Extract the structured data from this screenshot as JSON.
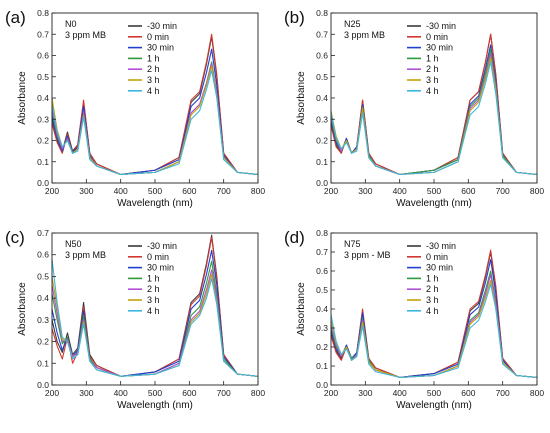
{
  "legend": {
    "entries": [
      "-30 min",
      "0 min",
      "30 min",
      "1 h",
      "2 h",
      "3 h",
      "4 h"
    ],
    "colors": [
      "#3a3a3a",
      "#d2372e",
      "#1f3fd1",
      "#2e9a3e",
      "#b24fd4",
      "#c6a10a",
      "#3bb8e0"
    ]
  },
  "chart_data": [
    {
      "type": "line",
      "panel_label": "(a)",
      "annotation": [
        "N0",
        "3 ppm MB"
      ],
      "xlabel": "Wavelength (nm)",
      "ylabel": "Absorbance",
      "xlim": [
        200,
        800
      ],
      "ylim": [
        0.0,
        0.8
      ],
      "xticks": [
        200,
        300,
        400,
        500,
        600,
        700,
        800
      ],
      "yticks": [
        0.0,
        0.1,
        0.2,
        0.3,
        0.4,
        0.5,
        0.6,
        0.7,
        0.8
      ],
      "x": [
        200,
        215,
        230,
        245,
        260,
        275,
        292,
        310,
        330,
        400,
        500,
        570,
        605,
        630,
        650,
        665,
        680,
        700,
        740,
        800
      ],
      "series": [
        {
          "name": "-30 min",
          "values": [
            0.3,
            0.2,
            0.15,
            0.24,
            0.15,
            0.18,
            0.38,
            0.14,
            0.09,
            0.04,
            0.06,
            0.12,
            0.38,
            0.42,
            0.56,
            0.69,
            0.5,
            0.14,
            0.05,
            0.04
          ]
        },
        {
          "name": "0 min",
          "values": [
            0.28,
            0.19,
            0.14,
            0.23,
            0.14,
            0.18,
            0.39,
            0.14,
            0.09,
            0.04,
            0.06,
            0.12,
            0.39,
            0.43,
            0.57,
            0.7,
            0.51,
            0.14,
            0.05,
            0.04
          ]
        },
        {
          "name": "30 min",
          "values": [
            0.31,
            0.21,
            0.15,
            0.22,
            0.14,
            0.17,
            0.36,
            0.13,
            0.08,
            0.04,
            0.06,
            0.11,
            0.36,
            0.4,
            0.52,
            0.63,
            0.46,
            0.13,
            0.05,
            0.04
          ]
        },
        {
          "name": "1 h",
          "values": [
            0.33,
            0.22,
            0.16,
            0.21,
            0.14,
            0.16,
            0.33,
            0.12,
            0.08,
            0.04,
            0.05,
            0.1,
            0.33,
            0.37,
            0.47,
            0.57,
            0.42,
            0.12,
            0.05,
            0.04
          ]
        },
        {
          "name": "2 h",
          "values": [
            0.35,
            0.23,
            0.16,
            0.21,
            0.14,
            0.16,
            0.33,
            0.12,
            0.08,
            0.04,
            0.05,
            0.1,
            0.33,
            0.37,
            0.47,
            0.56,
            0.42,
            0.12,
            0.05,
            0.04
          ]
        },
        {
          "name": "3 h",
          "values": [
            0.4,
            0.25,
            0.17,
            0.2,
            0.14,
            0.16,
            0.32,
            0.12,
            0.08,
            0.04,
            0.05,
            0.1,
            0.32,
            0.36,
            0.46,
            0.55,
            0.41,
            0.12,
            0.05,
            0.04
          ]
        },
        {
          "name": "4 h",
          "values": [
            0.37,
            0.24,
            0.17,
            0.2,
            0.14,
            0.15,
            0.31,
            0.11,
            0.08,
            0.04,
            0.05,
            0.09,
            0.3,
            0.34,
            0.44,
            0.53,
            0.4,
            0.11,
            0.05,
            0.04
          ]
        }
      ]
    },
    {
      "type": "line",
      "panel_label": "(b)",
      "annotation": [
        "N25",
        "3 ppm MB"
      ],
      "xlabel": "Wavelength (nm)",
      "ylabel": "Absorbance",
      "xlim": [
        200,
        800
      ],
      "ylim": [
        0.0,
        0.8
      ],
      "xticks": [
        200,
        300,
        400,
        500,
        600,
        700,
        800
      ],
      "yticks": [
        0.0,
        0.1,
        0.2,
        0.3,
        0.4,
        0.5,
        0.6,
        0.7,
        0.8
      ],
      "x": [
        200,
        215,
        230,
        245,
        260,
        275,
        292,
        310,
        330,
        400,
        500,
        570,
        605,
        630,
        650,
        665,
        680,
        700,
        740,
        800
      ],
      "series": [
        {
          "name": "-30 min",
          "values": [
            0.28,
            0.18,
            0.14,
            0.21,
            0.14,
            0.17,
            0.39,
            0.14,
            0.09,
            0.04,
            0.06,
            0.12,
            0.39,
            0.43,
            0.57,
            0.7,
            0.51,
            0.14,
            0.05,
            0.04
          ]
        },
        {
          "name": "0 min",
          "values": [
            0.27,
            0.17,
            0.14,
            0.21,
            0.14,
            0.17,
            0.39,
            0.14,
            0.09,
            0.04,
            0.06,
            0.12,
            0.39,
            0.43,
            0.57,
            0.7,
            0.51,
            0.14,
            0.05,
            0.04
          ]
        },
        {
          "name": "30 min",
          "values": [
            0.3,
            0.19,
            0.15,
            0.21,
            0.14,
            0.17,
            0.37,
            0.13,
            0.08,
            0.04,
            0.06,
            0.11,
            0.37,
            0.41,
            0.54,
            0.65,
            0.48,
            0.13,
            0.05,
            0.04
          ]
        },
        {
          "name": "1 h",
          "values": [
            0.31,
            0.2,
            0.15,
            0.2,
            0.14,
            0.16,
            0.36,
            0.13,
            0.08,
            0.04,
            0.06,
            0.11,
            0.36,
            0.4,
            0.52,
            0.63,
            0.46,
            0.13,
            0.05,
            0.04
          ]
        },
        {
          "name": "2 h",
          "values": [
            0.32,
            0.21,
            0.15,
            0.2,
            0.14,
            0.16,
            0.35,
            0.12,
            0.08,
            0.04,
            0.05,
            0.1,
            0.35,
            0.39,
            0.5,
            0.61,
            0.45,
            0.12,
            0.05,
            0.04
          ]
        },
        {
          "name": "3 h",
          "values": [
            0.34,
            0.22,
            0.16,
            0.2,
            0.14,
            0.16,
            0.35,
            0.12,
            0.08,
            0.04,
            0.05,
            0.1,
            0.34,
            0.38,
            0.49,
            0.59,
            0.44,
            0.12,
            0.05,
            0.04
          ]
        },
        {
          "name": "4 h",
          "values": [
            0.33,
            0.21,
            0.16,
            0.19,
            0.14,
            0.15,
            0.33,
            0.12,
            0.08,
            0.04,
            0.05,
            0.1,
            0.32,
            0.36,
            0.47,
            0.57,
            0.42,
            0.12,
            0.05,
            0.04
          ]
        }
      ]
    },
    {
      "type": "line",
      "panel_label": "(c)",
      "annotation": [
        "N50",
        "3 ppm MB"
      ],
      "xlabel": "Wavelength (nm)",
      "ylabel": "Absorbance",
      "xlim": [
        200,
        800
      ],
      "ylim": [
        0.0,
        0.7
      ],
      "xticks": [
        200,
        300,
        400,
        500,
        600,
        700,
        800
      ],
      "yticks": [
        0.0,
        0.1,
        0.2,
        0.3,
        0.4,
        0.5,
        0.6,
        0.7
      ],
      "x": [
        200,
        215,
        230,
        245,
        260,
        275,
        292,
        310,
        330,
        400,
        500,
        570,
        605,
        630,
        650,
        665,
        680,
        700,
        740,
        800
      ],
      "series": [
        {
          "name": "-30 min",
          "values": [
            0.3,
            0.2,
            0.15,
            0.24,
            0.14,
            0.17,
            0.38,
            0.14,
            0.09,
            0.04,
            0.06,
            0.12,
            0.38,
            0.42,
            0.56,
            0.69,
            0.5,
            0.14,
            0.05,
            0.04
          ]
        },
        {
          "name": "0 min",
          "values": [
            0.26,
            0.18,
            0.12,
            0.22,
            0.1,
            0.15,
            0.36,
            0.13,
            0.09,
            0.04,
            0.06,
            0.12,
            0.37,
            0.41,
            0.55,
            0.68,
            0.49,
            0.14,
            0.05,
            0.04
          ]
        },
        {
          "name": "30 min",
          "values": [
            0.35,
            0.24,
            0.16,
            0.22,
            0.13,
            0.16,
            0.34,
            0.12,
            0.08,
            0.04,
            0.06,
            0.11,
            0.35,
            0.39,
            0.51,
            0.62,
            0.46,
            0.13,
            0.05,
            0.04
          ]
        },
        {
          "name": "1 h",
          "values": [
            0.42,
            0.3,
            0.19,
            0.22,
            0.13,
            0.15,
            0.32,
            0.12,
            0.08,
            0.04,
            0.05,
            0.1,
            0.32,
            0.36,
            0.47,
            0.57,
            0.42,
            0.12,
            0.05,
            0.04
          ]
        },
        {
          "name": "2 h",
          "values": [
            0.46,
            0.33,
            0.2,
            0.21,
            0.13,
            0.15,
            0.3,
            0.11,
            0.08,
            0.04,
            0.05,
            0.1,
            0.3,
            0.34,
            0.44,
            0.53,
            0.4,
            0.11,
            0.05,
            0.04
          ]
        },
        {
          "name": "3 h",
          "values": [
            0.5,
            0.36,
            0.21,
            0.2,
            0.12,
            0.14,
            0.29,
            0.11,
            0.07,
            0.04,
            0.05,
            0.09,
            0.29,
            0.33,
            0.42,
            0.51,
            0.38,
            0.11,
            0.05,
            0.04
          ]
        },
        {
          "name": "4 h",
          "values": [
            0.58,
            0.38,
            0.22,
            0.2,
            0.12,
            0.14,
            0.28,
            0.11,
            0.07,
            0.04,
            0.05,
            0.09,
            0.28,
            0.32,
            0.4,
            0.49,
            0.37,
            0.11,
            0.05,
            0.04
          ]
        }
      ]
    },
    {
      "type": "line",
      "panel_label": "(d)",
      "annotation": [
        "N75",
        "3 ppm - MB"
      ],
      "xlabel": "Wavelength (nm)",
      "ylabel": "Absorbance",
      "xlim": [
        200,
        800
      ],
      "ylim": [
        0.0,
        0.8
      ],
      "xticks": [
        200,
        300,
        400,
        500,
        600,
        700,
        800
      ],
      "yticks": [
        0.0,
        0.1,
        0.2,
        0.3,
        0.4,
        0.5,
        0.6,
        0.7,
        0.8
      ],
      "x": [
        200,
        215,
        230,
        245,
        260,
        275,
        292,
        310,
        330,
        400,
        500,
        570,
        605,
        630,
        650,
        665,
        680,
        700,
        740,
        800
      ],
      "series": [
        {
          "name": "-30 min",
          "values": [
            0.27,
            0.18,
            0.14,
            0.21,
            0.14,
            0.17,
            0.39,
            0.14,
            0.09,
            0.04,
            0.06,
            0.12,
            0.39,
            0.43,
            0.57,
            0.7,
            0.51,
            0.14,
            0.05,
            0.04
          ]
        },
        {
          "name": "0 min",
          "values": [
            0.26,
            0.17,
            0.13,
            0.2,
            0.13,
            0.17,
            0.4,
            0.14,
            0.09,
            0.04,
            0.06,
            0.12,
            0.4,
            0.44,
            0.58,
            0.71,
            0.52,
            0.14,
            0.05,
            0.04
          ]
        },
        {
          "name": "30 min",
          "values": [
            0.29,
            0.19,
            0.15,
            0.21,
            0.14,
            0.17,
            0.38,
            0.13,
            0.08,
            0.04,
            0.06,
            0.11,
            0.37,
            0.41,
            0.54,
            0.66,
            0.48,
            0.13,
            0.05,
            0.04
          ]
        },
        {
          "name": "1 h",
          "values": [
            0.31,
            0.2,
            0.15,
            0.2,
            0.14,
            0.16,
            0.35,
            0.13,
            0.08,
            0.04,
            0.05,
            0.1,
            0.34,
            0.38,
            0.5,
            0.6,
            0.44,
            0.12,
            0.05,
            0.04
          ]
        },
        {
          "name": "2 h",
          "values": [
            0.32,
            0.21,
            0.15,
            0.2,
            0.13,
            0.16,
            0.34,
            0.12,
            0.08,
            0.04,
            0.05,
            0.1,
            0.33,
            0.37,
            0.48,
            0.58,
            0.43,
            0.12,
            0.05,
            0.04
          ]
        },
        {
          "name": "3 h",
          "values": [
            0.34,
            0.22,
            0.16,
            0.2,
            0.13,
            0.15,
            0.33,
            0.12,
            0.08,
            0.04,
            0.05,
            0.1,
            0.32,
            0.36,
            0.46,
            0.55,
            0.41,
            0.12,
            0.05,
            0.04
          ]
        },
        {
          "name": "4 h",
          "values": [
            0.37,
            0.23,
            0.16,
            0.19,
            0.13,
            0.15,
            0.31,
            0.11,
            0.07,
            0.04,
            0.05,
            0.09,
            0.3,
            0.34,
            0.44,
            0.53,
            0.4,
            0.11,
            0.05,
            0.04
          ]
        }
      ]
    }
  ]
}
